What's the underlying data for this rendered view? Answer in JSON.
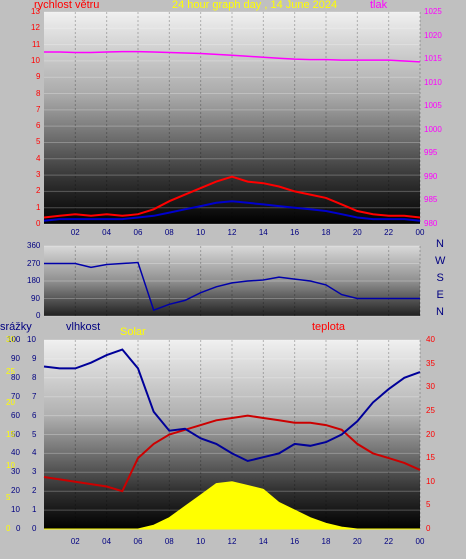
{
  "chart_data": [
    {
      "type": "line",
      "title": "24 hour graph day , 14 June 2024",
      "y_left_label": "rychlost větru",
      "y_right_label": "tlak",
      "x_ticks": [
        "02",
        "04",
        "06",
        "08",
        "10",
        "12",
        "14",
        "16",
        "18",
        "20",
        "22",
        "00"
      ],
      "y_left_ticks": [
        "0",
        "1",
        "2",
        "3",
        "4",
        "5",
        "6",
        "7",
        "8",
        "9",
        "10",
        "11",
        "12",
        "13"
      ],
      "y_right_ticks": [
        "980",
        "985",
        "990",
        "995",
        "1000",
        "1005",
        "1010",
        "1015",
        "1020",
        "1025"
      ],
      "ylim_left": [
        0,
        13
      ],
      "ylim_right": [
        980,
        1025
      ],
      "x": [
        0,
        1,
        2,
        3,
        4,
        5,
        6,
        7,
        8,
        9,
        10,
        11,
        12,
        13,
        14,
        15,
        16,
        17,
        18,
        19,
        20,
        21,
        22,
        23,
        24
      ],
      "series": [
        {
          "label_color": "#ff00ff",
          "axis": "right",
          "values": [
            1016.5,
            1016.5,
            1016.4,
            1016.4,
            1016.5,
            1016.6,
            1016.6,
            1016.5,
            1016.4,
            1016.3,
            1016.2,
            1016.0,
            1015.8,
            1015.6,
            1015.4,
            1015.2,
            1015.0,
            1014.9,
            1014.9,
            1014.8,
            1014.8,
            1014.8,
            1014.8,
            1014.6,
            1014.4
          ]
        },
        {
          "label_color": "#ff0000",
          "axis": "left",
          "values": [
            0.4,
            0.5,
            0.6,
            0.5,
            0.6,
            0.5,
            0.6,
            0.9,
            1.4,
            1.8,
            2.2,
            2.6,
            2.9,
            2.6,
            2.5,
            2.3,
            2.0,
            1.8,
            1.6,
            1.2,
            0.8,
            0.6,
            0.5,
            0.5,
            0.4
          ]
        },
        {
          "label_color": "#0000cc",
          "axis": "left",
          "values": [
            0.2,
            0.3,
            0.3,
            0.3,
            0.3,
            0.3,
            0.4,
            0.5,
            0.7,
            0.9,
            1.1,
            1.3,
            1.4,
            1.3,
            1.2,
            1.1,
            1.0,
            0.9,
            0.8,
            0.6,
            0.4,
            0.3,
            0.3,
            0.3,
            0.2
          ]
        }
      ]
    },
    {
      "type": "line",
      "y_ticks": [
        "0",
        "90",
        "180",
        "270",
        "360"
      ],
      "ylim": [
        0,
        360
      ],
      "right_labels": [
        "N",
        "W",
        "S",
        "E",
        "N"
      ],
      "x": [
        0,
        1,
        2,
        3,
        4,
        5,
        6,
        7,
        8,
        9,
        10,
        11,
        12,
        13,
        14,
        15,
        16,
        17,
        18,
        19,
        20,
        21,
        22,
        23,
        24
      ],
      "series": [
        {
          "label_color": "#0000aa",
          "values": [
            270,
            270,
            270,
            250,
            265,
            270,
            275,
            30,
            60,
            80,
            120,
            150,
            170,
            180,
            185,
            200,
            190,
            180,
            160,
            110,
            90,
            90,
            90,
            90,
            90
          ]
        }
      ]
    },
    {
      "type": "line",
      "labels": {
        "rain": "srážky",
        "humidity": "vlhkost",
        "solar": "Solar",
        "temp": "teplota"
      },
      "x_ticks": [
        "02",
        "04",
        "06",
        "08",
        "10",
        "12",
        "14",
        "16",
        "18",
        "20",
        "22",
        "00"
      ],
      "rain_ticks": [
        "0",
        "1",
        "2",
        "3",
        "4",
        "5",
        "6",
        "7",
        "8",
        "9",
        "10"
      ],
      "humidity_ticks": [
        "0",
        "10",
        "20",
        "30",
        "40",
        "50",
        "60",
        "70",
        "80",
        "90",
        "100"
      ],
      "solar_ticks": [
        "0",
        "5",
        "10",
        "15",
        "20",
        "25",
        "30"
      ],
      "temp_ticks": [
        "0",
        "5",
        "10",
        "15",
        "20",
        "25",
        "30",
        "35",
        "40"
      ],
      "ylim_humidity": [
        0,
        100
      ],
      "ylim_temp": [
        0,
        40
      ],
      "x": [
        0,
        1,
        2,
        3,
        4,
        5,
        6,
        7,
        8,
        9,
        10,
        11,
        12,
        13,
        14,
        15,
        16,
        17,
        18,
        19,
        20,
        21,
        22,
        23,
        24
      ],
      "series": [
        {
          "label_color": "#000099",
          "axis": "humidity",
          "values": [
            86,
            85,
            85,
            88,
            92,
            95,
            85,
            62,
            52,
            53,
            48,
            45,
            40,
            36,
            38,
            40,
            45,
            44,
            46,
            50,
            57,
            67,
            74,
            80,
            83
          ]
        },
        {
          "label_color": "#cc0000",
          "axis": "temp",
          "values": [
            11,
            10.5,
            10,
            9.5,
            9,
            8,
            15,
            18,
            20,
            21,
            22,
            23,
            23.5,
            24,
            23.5,
            23,
            22.5,
            22.5,
            22,
            21,
            18,
            16,
            15,
            14,
            12.5
          ]
        },
        {
          "label_color": "#ffff00",
          "axis": "humidity",
          "values": [
            0,
            0,
            0,
            0,
            0,
            0,
            0,
            2,
            6,
            12,
            18,
            24,
            25,
            23,
            21,
            14,
            10,
            6,
            3,
            1,
            0,
            0,
            0,
            0,
            0
          ]
        }
      ]
    }
  ]
}
